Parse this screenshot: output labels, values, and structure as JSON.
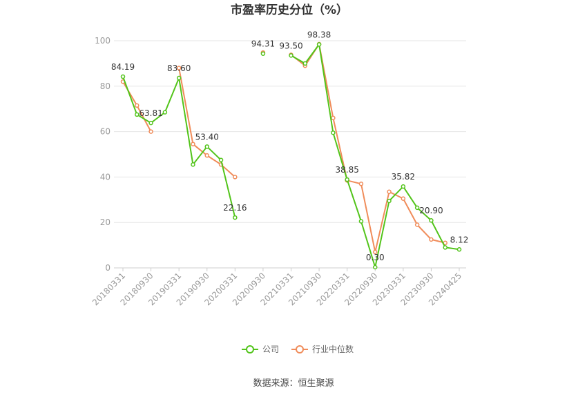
{
  "chart_data": {
    "type": "line",
    "title": "市盈率历史分位（%）",
    "source": "数据来源：恒生聚源",
    "ylim": [
      0,
      100
    ],
    "yticks": [
      0,
      20,
      40,
      60,
      80,
      100
    ],
    "x_tick_labels": [
      "20180331",
      "20180930",
      "20190331",
      "20190930",
      "20200331",
      "20200930",
      "20210331",
      "20210930",
      "20220331",
      "20220930",
      "20230331",
      "20230930",
      "20240425"
    ],
    "legend_position": "bottom",
    "grid": true,
    "x": [
      "20180331",
      "20180630",
      "20180930",
      "20181231",
      "20190331",
      "20190630",
      "20190930",
      "20191231",
      "20200331",
      "20200630",
      "20200930",
      "20201231",
      "20210331",
      "20210630",
      "20210930",
      "20211231",
      "20220331",
      "20220630",
      "20220930",
      "20221231",
      "20230331",
      "20230630",
      "20230930",
      "20231231",
      "20240425"
    ],
    "series": [
      {
        "name": "公司",
        "color": "#52c41a",
        "values": [
          84.19,
          67.5,
          63.81,
          68.5,
          83.6,
          45.5,
          53.4,
          47.5,
          22.16,
          null,
          94.31,
          null,
          93.5,
          90.0,
          98.38,
          59.5,
          38.85,
          20.5,
          0.3,
          29.5,
          35.82,
          26.5,
          20.9,
          9.0,
          8.12
        ]
      },
      {
        "name": "行业中位数",
        "color": "#f08c5a",
        "values": [
          82.0,
          71.5,
          60.0,
          null,
          88.0,
          54.5,
          49.5,
          45.5,
          40.0,
          null,
          94.8,
          null,
          93.8,
          89.0,
          98.5,
          66.0,
          38.5,
          37.0,
          7.0,
          33.5,
          30.5,
          19.0,
          12.5,
          11.0,
          null
        ]
      }
    ],
    "data_labels": [
      {
        "index": 0,
        "text": "84.19"
      },
      {
        "index": 2,
        "text": "63.81"
      },
      {
        "index": 4,
        "text": "83.60"
      },
      {
        "index": 6,
        "text": "53.40"
      },
      {
        "index": 8,
        "text": "22.16"
      },
      {
        "index": 10,
        "text": "94.31"
      },
      {
        "index": 12,
        "text": "93.50"
      },
      {
        "index": 14,
        "text": "98.38"
      },
      {
        "index": 16,
        "text": "38.85"
      },
      {
        "index": 18,
        "text": "0.30"
      },
      {
        "index": 20,
        "text": "35.82"
      },
      {
        "index": 22,
        "text": "20.90"
      },
      {
        "index": 24,
        "text": "8.12"
      }
    ]
  }
}
